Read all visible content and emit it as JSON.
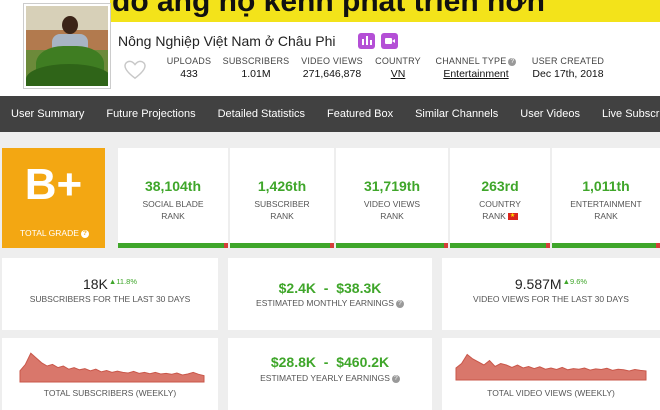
{
  "banner": {
    "text": "do ang hộ kênh phát triển hơn"
  },
  "channel": {
    "name": "Nông Nghiệp Việt Nam ở Châu Phi",
    "badges": [
      "stats-badge-icon",
      "video-badge-icon"
    ]
  },
  "header_stats": [
    {
      "label": "UPLOADS",
      "value": "433"
    },
    {
      "label": "SUBSCRIBERS",
      "value": "1.01M"
    },
    {
      "label": "VIDEO VIEWS",
      "value": "271,646,878"
    },
    {
      "label": "COUNTRY",
      "value": "VN"
    },
    {
      "label": "CHANNEL TYPE",
      "value": "Entertainment"
    },
    {
      "label": "USER CREATED",
      "value": "Dec 17th, 2018"
    }
  ],
  "nav": [
    "User Summary",
    "Future Projections",
    "Detailed Statistics",
    "Featured Box",
    "Similar Channels",
    "User Videos",
    "Live Subscriber"
  ],
  "grade": {
    "value": "B+",
    "label": "TOTAL GRADE",
    "color": "#f3a712"
  },
  "ranks": [
    {
      "value": "38,104th",
      "line1": "SOCIAL BLADE",
      "line2": "RANK"
    },
    {
      "value": "1,426th",
      "line1": "SUBSCRIBER",
      "line2": "RANK"
    },
    {
      "value": "31,719th",
      "line1": "VIDEO VIEWS",
      "line2": "RANK"
    },
    {
      "value": "263rd",
      "line1": "COUNTRY",
      "line2": "RANK"
    },
    {
      "value": "1,011th",
      "line1": "ENTERTAINMENT",
      "line2": "RANK"
    }
  ],
  "metrics": {
    "subs30": {
      "value": "18K",
      "delta": "▲11.8%",
      "label": "SUBSCRIBERS FOR THE LAST 30 DAYS"
    },
    "monthly": {
      "value": "$2.4K  -  $38.3K",
      "label": "ESTIMATED MONTHLY EARNINGS"
    },
    "views30": {
      "value": "9.587M",
      "delta": "▲9.6%",
      "label": "VIDEO VIEWS FOR THE LAST 30 DAYS"
    },
    "yearly": {
      "value": "$28.8K  -  $460.2K",
      "label": "ESTIMATED YEARLY EARNINGS"
    },
    "total_subs_label": "TOTAL SUBSCRIBERS (WEEKLY)",
    "total_views_label": "TOTAL VIDEO VIEWS (WEEKLY)"
  },
  "colors": {
    "accent_green": "#3fa62a",
    "nav_bg": "#414141",
    "spark_fill": "#d9776b",
    "bar_red": "#d43f3a"
  },
  "sparklines": {
    "subs": [
      0.35,
      0.55,
      0.9,
      0.75,
      0.6,
      0.5,
      0.55,
      0.45,
      0.5,
      0.4,
      0.45,
      0.38,
      0.42,
      0.35,
      0.4,
      0.32,
      0.36,
      0.3,
      0.34,
      0.3,
      0.28,
      0.33,
      0.27,
      0.3,
      0.26,
      0.3,
      0.25,
      0.27,
      0.24,
      0.28,
      0.22,
      0.25,
      0.3,
      0.24,
      0.2
    ],
    "views": [
      0.4,
      0.55,
      0.85,
      0.7,
      0.6,
      0.5,
      0.65,
      0.45,
      0.55,
      0.5,
      0.42,
      0.5,
      0.4,
      0.45,
      0.38,
      0.44,
      0.36,
      0.4,
      0.35,
      0.42,
      0.34,
      0.38,
      0.36,
      0.4,
      0.33,
      0.37,
      0.35,
      0.39,
      0.32,
      0.36,
      0.34,
      0.3,
      0.35,
      0.32,
      0.3
    ]
  }
}
